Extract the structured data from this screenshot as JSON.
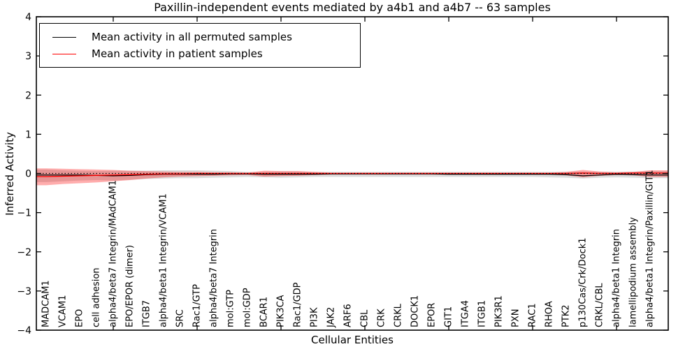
{
  "chart_data": {
    "type": "line",
    "title": "Paxillin-independent events mediated by a4b1 and a4b7 -- 63 samples",
    "xlabel": "Cellular Entities",
    "ylabel": "Inferred Activity",
    "ylim": [
      -4,
      4
    ],
    "ytick_labels": [
      "4",
      "3",
      "2",
      "1",
      "0",
      "−1",
      "−2",
      "−3",
      "−4"
    ],
    "ytick_values": [
      4,
      3,
      2,
      1,
      0,
      -1,
      -2,
      -3,
      -4
    ],
    "grid": false,
    "legend_position": "upper left",
    "categories": [
      "MADCAM1",
      "VCAM1",
      "EPO",
      "cell adhesion",
      "alpha4/beta7 Integrin/MAdCAM1",
      "EPO/EPOR (dimer)",
      "ITGB7",
      "alpha4/beta1 Integrin/VCAM1",
      "SRC",
      "Rac1/GTP",
      "alpha4/beta7 Integrin",
      "mol:GTP",
      "mol:GDP",
      "BCAR1",
      "PIK3CA",
      "Rac1/GDP",
      "PI3K",
      "JAK2",
      "ARF6",
      "CBL",
      "CRK",
      "CRKL",
      "DOCK1",
      "EPOR",
      "GIT1",
      "ITGA4",
      "ITGB1",
      "PIK3R1",
      "PXN",
      "RAC1",
      "RHOA",
      "PTK2",
      "p130Cas/Crk/Dock1",
      "CRKL/CBL",
      "alpha4/beta1 Integrin",
      "lamellipodium assembly",
      "alpha4/beta1 Integrin/Paxillin/GIT1"
    ],
    "series": [
      {
        "name": "Mean activity in all permuted samples",
        "color": "#000000",
        "band_color": "rgba(128,128,128,0.28)",
        "values": [
          -0.04,
          -0.04,
          -0.04,
          -0.05,
          -0.06,
          -0.05,
          -0.03,
          -0.02,
          -0.02,
          -0.02,
          -0.02,
          -0.01,
          -0.01,
          -0.02,
          -0.02,
          -0.02,
          -0.02,
          -0.01,
          -0.01,
          -0.01,
          -0.01,
          -0.01,
          -0.01,
          -0.01,
          -0.02,
          -0.02,
          -0.02,
          -0.02,
          -0.02,
          -0.02,
          -0.02,
          -0.03,
          -0.06,
          -0.04,
          -0.02,
          -0.03,
          -0.04
        ],
        "band_upper": [
          0.1,
          0.08,
          0.07,
          0.06,
          0.07,
          0.07,
          0.07,
          0.08,
          0.08,
          0.08,
          0.07,
          0.06,
          0.04,
          0.04,
          0.05,
          0.05,
          0.04,
          0.04,
          0.04,
          0.04,
          0.04,
          0.04,
          0.04,
          0.04,
          0.04,
          0.04,
          0.04,
          0.04,
          0.04,
          0.04,
          0.04,
          0.04,
          0.05,
          0.04,
          0.04,
          0.05,
          0.06
        ],
        "band_lower": [
          -0.22,
          -0.2,
          -0.18,
          -0.17,
          -0.18,
          -0.16,
          -0.14,
          -0.13,
          -0.12,
          -0.12,
          -0.11,
          -0.1,
          -0.09,
          -0.1,
          -0.11,
          -0.1,
          -0.09,
          -0.09,
          -0.09,
          -0.09,
          -0.09,
          -0.09,
          -0.09,
          -0.09,
          -0.09,
          -0.09,
          -0.09,
          -0.09,
          -0.09,
          -0.09,
          -0.1,
          -0.11,
          -0.13,
          -0.11,
          -0.1,
          -0.11,
          -0.12
        ]
      },
      {
        "name": "Mean activity in patient samples",
        "color": "#ff0000",
        "band_color": "rgba(255,0,0,0.32)",
        "values": [
          -0.08,
          -0.07,
          -0.06,
          -0.05,
          -0.04,
          -0.03,
          -0.02,
          -0.01,
          -0.01,
          0,
          0,
          0,
          0,
          0,
          0,
          0,
          0,
          0,
          0,
          0,
          0,
          0,
          0,
          0,
          0,
          0,
          0,
          0,
          0,
          0,
          0,
          0,
          0.01,
          0,
          0,
          0.01,
          0.01
        ],
        "band_upper": [
          0.13,
          0.12,
          0.11,
          0.1,
          0.09,
          0.07,
          0.06,
          0.05,
          0.04,
          0.04,
          0.03,
          0.03,
          0.02,
          0.07,
          0.06,
          0.06,
          0.04,
          0.02,
          0.02,
          0.02,
          0.02,
          0.02,
          0.02,
          0.02,
          0.02,
          0.02,
          0.02,
          0.02,
          0.02,
          0.02,
          0.02,
          0.04,
          0.09,
          0.05,
          0.03,
          0.04,
          0.08
        ],
        "band_lower": [
          -0.3,
          -0.27,
          -0.25,
          -0.23,
          -0.2,
          -0.17,
          -0.13,
          -0.1,
          -0.08,
          -0.07,
          -0.06,
          -0.05,
          -0.04,
          -0.08,
          -0.07,
          -0.06,
          -0.04,
          -0.03,
          -0.03,
          -0.03,
          -0.03,
          -0.03,
          -0.03,
          -0.03,
          -0.03,
          -0.03,
          -0.03,
          -0.03,
          -0.03,
          -0.03,
          -0.03,
          -0.05,
          -0.1,
          -0.06,
          -0.04,
          -0.05,
          -0.09
        ]
      }
    ],
    "reference_line": {
      "y": 0,
      "style": "dotted",
      "color": "#000000"
    }
  }
}
